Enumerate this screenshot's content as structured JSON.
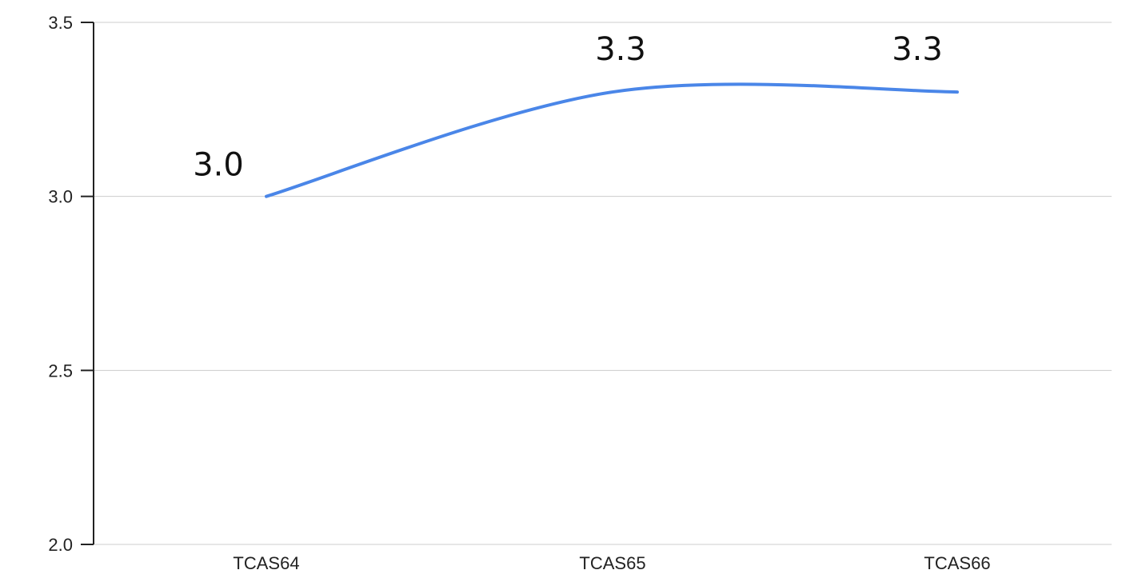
{
  "chart_data": {
    "type": "line",
    "title": "",
    "xlabel": "",
    "ylabel": "",
    "categories": [
      "TCAS64",
      "TCAS65",
      "TCAS66"
    ],
    "series": [
      {
        "values": [
          3.0,
          3.3,
          3.3
        ],
        "data_labels": [
          "3.0",
          "3.3",
          "3.3"
        ],
        "color": "#4a86e8",
        "smooth": true
      }
    ],
    "ylim": [
      2.0,
      3.5
    ],
    "y_ticks": [
      2.0,
      2.5,
      3.0,
      3.5
    ],
    "y_tick_labels": [
      "2.0",
      "2.5",
      "3.0",
      "3.5"
    ],
    "grid": true,
    "legend": "none",
    "colors": {
      "line": "#4a86e8",
      "grid": "#cccccc",
      "axis": "#222222"
    }
  }
}
